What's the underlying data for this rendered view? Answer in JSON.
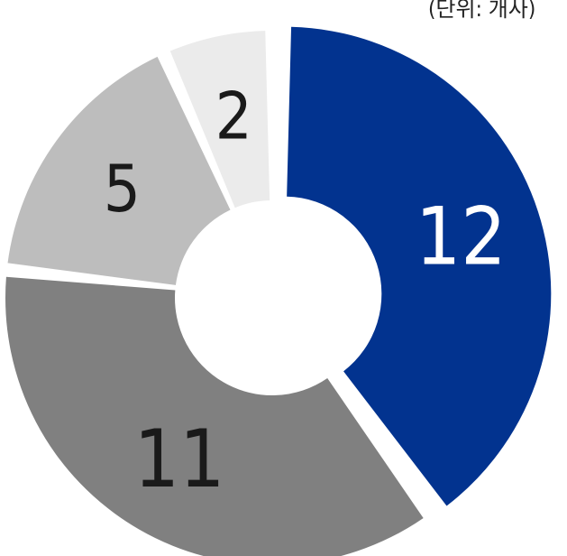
{
  "unit_label": "(단위: 개사)",
  "chart_data": {
    "type": "pie",
    "style": "donut",
    "categories": [
      "",
      "",
      "",
      ""
    ],
    "values": [
      12,
      11,
      5,
      2
    ],
    "data_labels": [
      "12",
      "11",
      "5",
      "2"
    ],
    "colors": [
      "#02338f",
      "#808080",
      "#bdbdbd",
      "#ebebeb"
    ],
    "label_colors": [
      "#ffffff",
      "#1a1a1a",
      "#1a1a1a",
      "#1a1a1a"
    ],
    "exploded_slice": 0,
    "legend": "none"
  }
}
